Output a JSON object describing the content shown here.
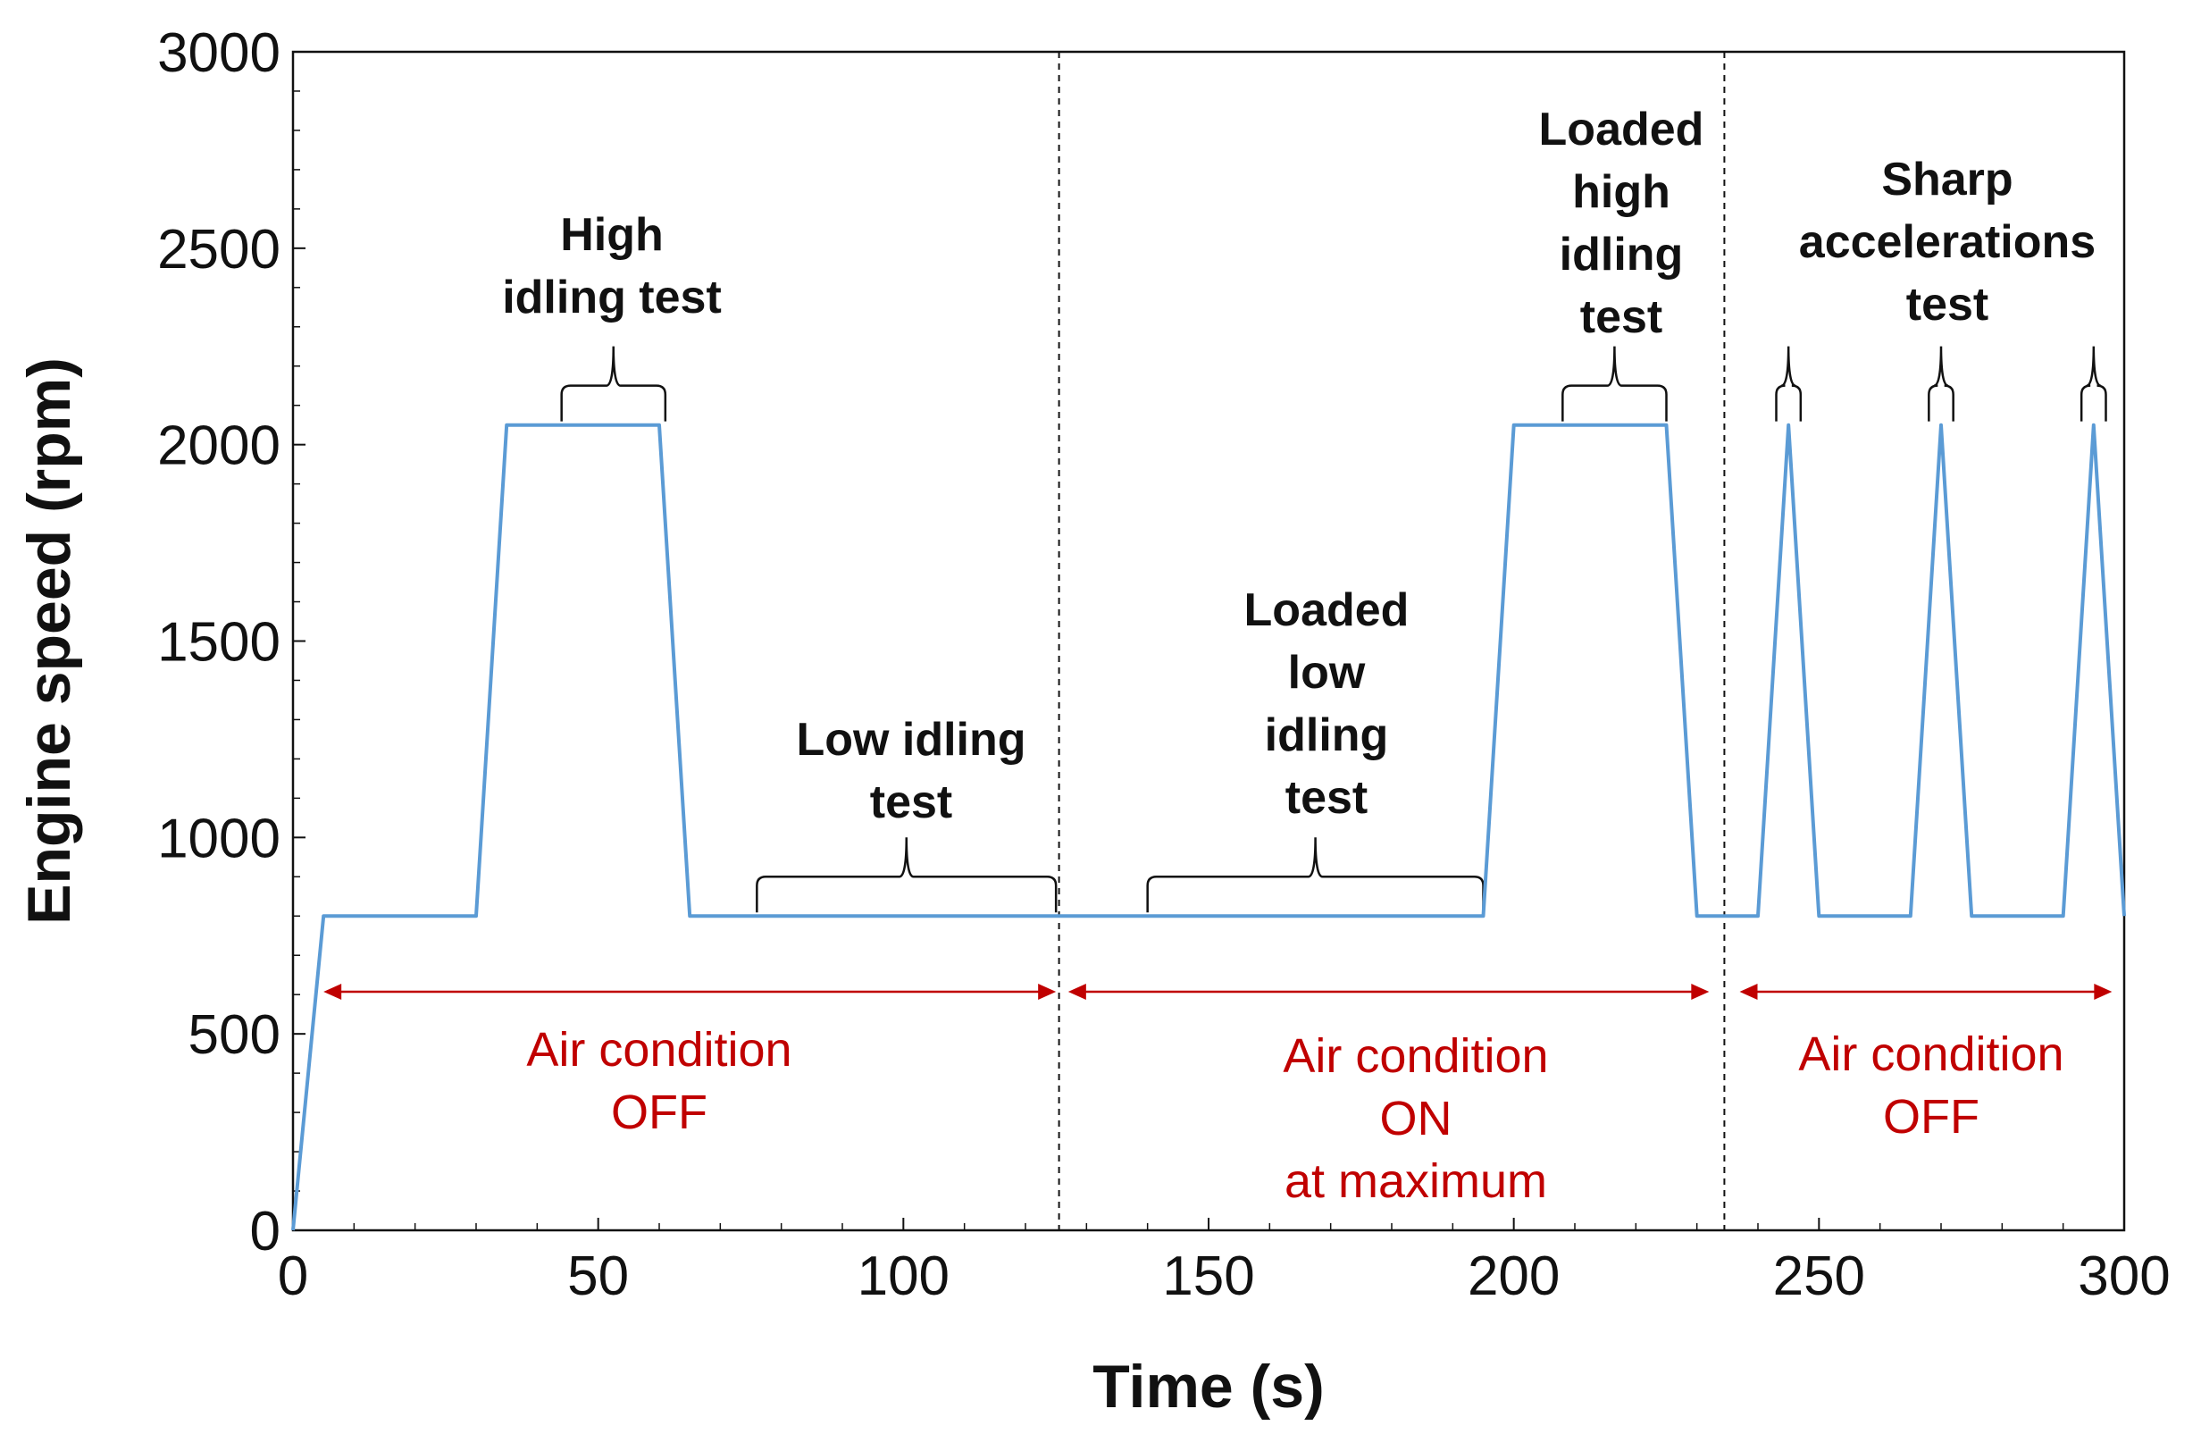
{
  "chart_data": {
    "type": "line",
    "xlabel": "Time (s)",
    "ylabel": "Engine speed (rpm)",
    "xlim": [
      0,
      300
    ],
    "ylim": [
      0,
      3000
    ],
    "x_ticks": [
      "0",
      "50",
      "100",
      "150",
      "200",
      "250",
      "300"
    ],
    "y_ticks": [
      "0",
      "500",
      "1000",
      "1500",
      "2000",
      "2500",
      "3000"
    ],
    "line_color": "#5b9bd5",
    "annotation_color": "#c00000",
    "series": [
      {
        "name": "Engine speed",
        "x": [
          0,
          5,
          30,
          35,
          60,
          65,
          195,
          200,
          225,
          230,
          240,
          245,
          250,
          265,
          270,
          275,
          290,
          295,
          300
        ],
        "y": [
          0,
          800,
          800,
          2050,
          2050,
          800,
          800,
          2050,
          2050,
          800,
          800,
          2050,
          800,
          800,
          2050,
          800,
          800,
          2050,
          800
        ]
      }
    ],
    "dividers_x": [
      125.5,
      234.5
    ],
    "tests": [
      {
        "id": "high-idling",
        "lines": [
          "High",
          "idling test"
        ],
        "bracket": [
          44,
          61
        ]
      },
      {
        "id": "low-idling",
        "lines": [
          "Low idling",
          "test"
        ],
        "bracket": [
          76,
          125
        ]
      },
      {
        "id": "loaded-low-idling",
        "lines": [
          "Loaded",
          "low",
          "idling",
          "test"
        ],
        "bracket": [
          140,
          195
        ]
      },
      {
        "id": "loaded-high-idling",
        "lines": [
          "Loaded",
          "high",
          "idling",
          "test"
        ],
        "bracket": [
          208,
          225
        ]
      },
      {
        "id": "sharp-accelerations",
        "lines": [
          "Sharp",
          "accelerations",
          "test"
        ],
        "brackets": [
          [
            243,
            247
          ],
          [
            268,
            272
          ],
          [
            293,
            297
          ]
        ]
      }
    ],
    "air_conditions": [
      {
        "lines": [
          "Air condition",
          "OFF"
        ],
        "range": [
          5,
          125
        ]
      },
      {
        "lines": [
          "Air condition",
          "ON",
          "at maximum"
        ],
        "range": [
          127,
          232
        ]
      },
      {
        "lines": [
          "Air condition",
          "OFF"
        ],
        "range": [
          237,
          298
        ]
      }
    ]
  }
}
